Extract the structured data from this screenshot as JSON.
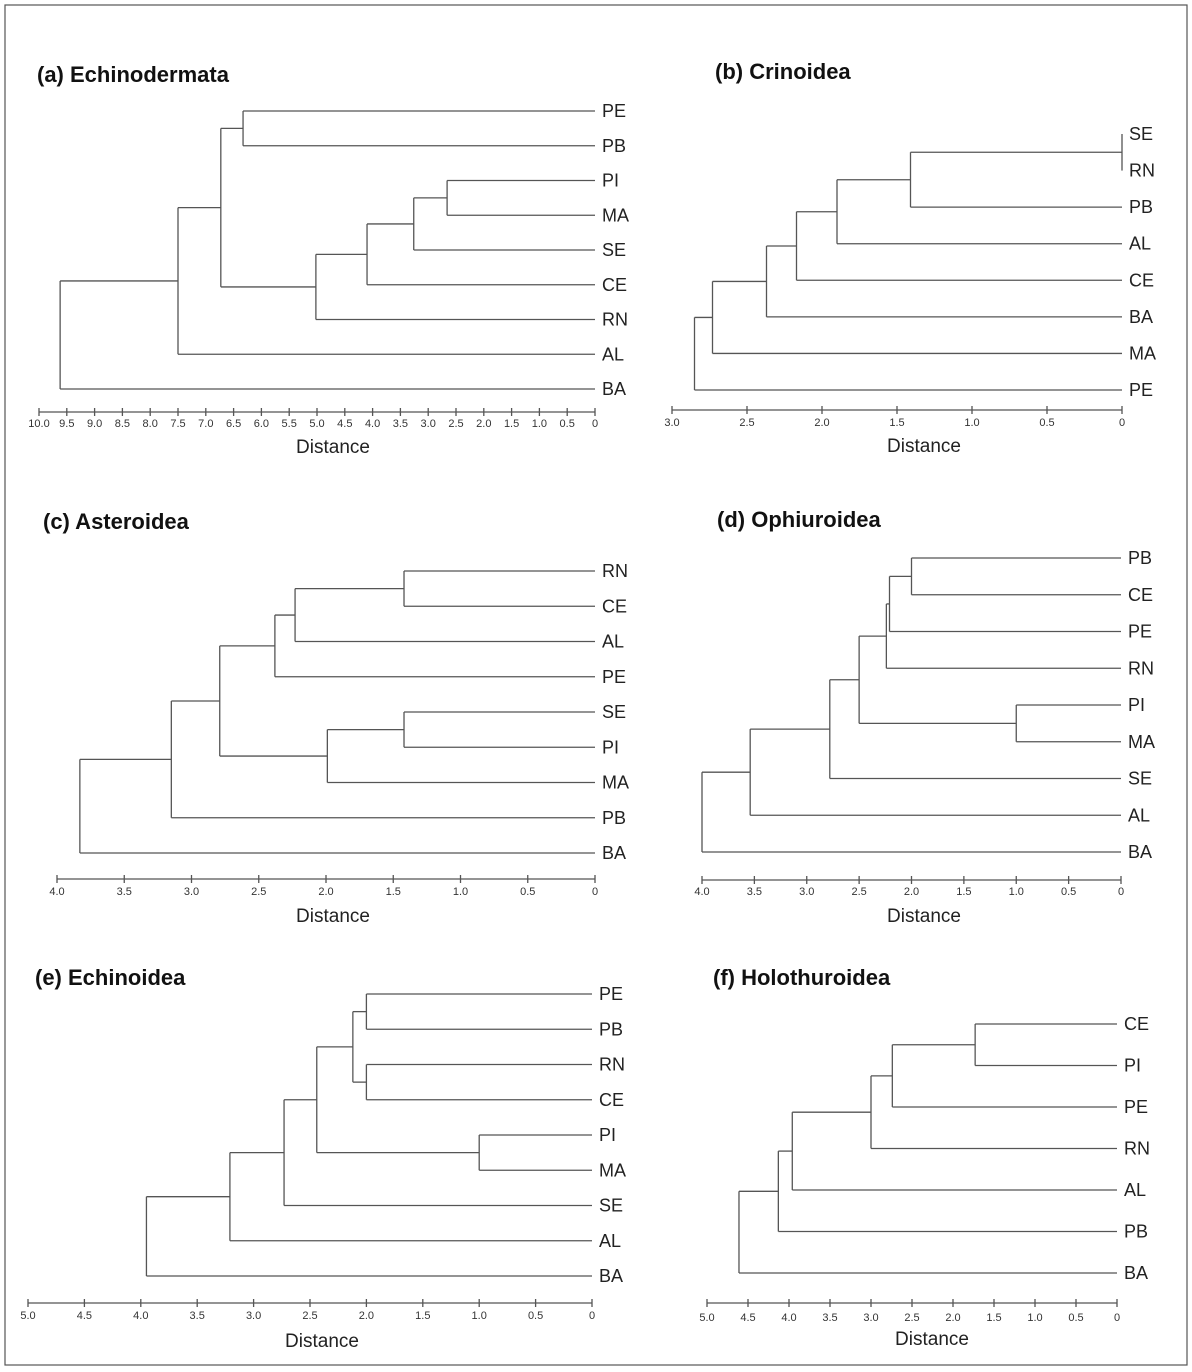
{
  "chart_data": [
    {
      "type": "dendrogram",
      "title": "(a) Echinodermata",
      "xlabel": "Distance",
      "xlim": [
        10.0,
        0
      ],
      "ticks": [
        "10.0",
        "9.5",
        "9.0",
        "8.5",
        "8.0",
        "7.5",
        "7.0",
        "6.5",
        "6.0",
        "5.5",
        "5.0",
        "4.5",
        "4.0",
        "3.5",
        "3.0",
        "2.5",
        "2.0",
        "1.5",
        "1.0",
        "0.5",
        "0"
      ],
      "leaves": [
        "PE",
        "PB",
        "PI",
        "MA",
        "SE",
        "CE",
        "RN",
        "AL",
        "BA"
      ],
      "tree": {
        "h": 9.62,
        "c": [
          {
            "h": 7.5,
            "c": [
              {
                "h": 6.73,
                "c": [
                  {
                    "h": 6.33,
                    "c": [
                      "PE",
                      "PB"
                    ]
                  },
                  {
                    "h": 5.02,
                    "c": [
                      {
                        "h": 4.1,
                        "c": [
                          {
                            "h": 3.26,
                            "c": [
                              {
                                "h": 2.66,
                                "c": [
                                  "PI",
                                  "MA"
                                ]
                              },
                              "SE"
                            ]
                          },
                          "CE"
                        ]
                      },
                      "RN"
                    ]
                  }
                ]
              },
              "AL"
            ]
          },
          "BA"
        ]
      }
    },
    {
      "type": "dendrogram",
      "title": "(b) Crinoidea",
      "xlabel": "Distance",
      "xlim": [
        3.0,
        0
      ],
      "ticks": [
        "3.0",
        "2.5",
        "2.0",
        "1.5",
        "1.0",
        "0.5",
        "0"
      ],
      "leaves": [
        "SE",
        "RN",
        "PB",
        "AL",
        "CE",
        "BA",
        "MA",
        "PE"
      ],
      "tree": {
        "h": 2.85,
        "c": [
          {
            "h": 2.73,
            "c": [
              {
                "h": 2.37,
                "c": [
                  {
                    "h": 2.17,
                    "c": [
                      {
                        "h": 1.9,
                        "c": [
                          {
                            "h": 1.41,
                            "c": [
                              {
                                "h": 0,
                                "c": [
                                  "SE",
                                  "RN"
                                ]
                              },
                              "PB"
                            ]
                          },
                          "AL"
                        ]
                      },
                      "CE"
                    ]
                  },
                  "BA"
                ]
              },
              "MA"
            ]
          },
          "PE"
        ]
      }
    },
    {
      "type": "dendrogram",
      "title": "(c) Asteroidea",
      "xlabel": "Distance",
      "xlim": [
        4.0,
        0
      ],
      "ticks": [
        "4.0",
        "3.5",
        "3.0",
        "2.5",
        "2.0",
        "1.5",
        "1.0",
        "0.5",
        "0"
      ],
      "leaves": [
        "RN",
        "CE",
        "AL",
        "PE",
        "SE",
        "PI",
        "MA",
        "PB",
        "BA"
      ],
      "tree": {
        "h": 3.83,
        "c": [
          {
            "h": 3.15,
            "c": [
              {
                "h": 2.79,
                "c": [
                  {
                    "h": 2.38,
                    "c": [
                      {
                        "h": 2.23,
                        "c": [
                          {
                            "h": 1.42,
                            "c": [
                              "RN",
                              "CE"
                            ]
                          },
                          "AL"
                        ]
                      },
                      "PE"
                    ]
                  },
                  {
                    "h": 1.99,
                    "c": [
                      {
                        "h": 1.42,
                        "c": [
                          "SE",
                          "PI"
                        ]
                      },
                      "MA"
                    ]
                  }
                ]
              },
              "PB"
            ]
          },
          "BA"
        ]
      }
    },
    {
      "type": "dendrogram",
      "title": "(d) Ophiuroidea",
      "xlabel": "Distance",
      "xlim": [
        4.0,
        0
      ],
      "ticks": [
        "4.0",
        "3.5",
        "3.0",
        "2.5",
        "2.0",
        "1.5",
        "1.0",
        "0.5",
        "0"
      ],
      "leaves": [
        "PB",
        "CE",
        "PE",
        "RN",
        "PI",
        "MA",
        "SE",
        "AL",
        "BA"
      ],
      "tree": {
        "h": 4.0,
        "c": [
          {
            "h": 3.54,
            "c": [
              {
                "h": 2.78,
                "c": [
                  {
                    "h": 2.5,
                    "c": [
                      {
                        "h": 2.24,
                        "c": [
                          {
                            "h": 2.21,
                            "c": [
                              {
                                "h": 2.0,
                                "c": [
                                  "PB",
                                  "CE"
                                ]
                              },
                              "PE"
                            ]
                          },
                          "RN"
                        ]
                      },
                      {
                        "h": 1.0,
                        "c": [
                          "PI",
                          "MA"
                        ]
                      }
                    ]
                  },
                  "SE"
                ]
              },
              "AL"
            ]
          },
          "BA"
        ]
      }
    },
    {
      "type": "dendrogram",
      "title": "(e) Echinoidea",
      "xlabel": "Distance",
      "xlim": [
        5.0,
        0
      ],
      "ticks": [
        "5.0",
        "4.5",
        "4.0",
        "3.5",
        "3.0",
        "2.5",
        "2.0",
        "1.5",
        "1.0",
        "0.5",
        "0"
      ],
      "leaves": [
        "PE",
        "PB",
        "RN",
        "CE",
        "PI",
        "MA",
        "SE",
        "AL",
        "BA"
      ],
      "tree": {
        "h": 3.95,
        "c": [
          {
            "h": 3.21,
            "c": [
              {
                "h": 2.73,
                "c": [
                  {
                    "h": 2.44,
                    "c": [
                      {
                        "h": 2.12,
                        "c": [
                          {
                            "h": 2.0,
                            "c": [
                              "PE",
                              "PB"
                            ]
                          },
                          {
                            "h": 2.0,
                            "c": [
                              "RN",
                              "CE"
                            ]
                          }
                        ]
                      },
                      {
                        "h": 1.0,
                        "c": [
                          "PI",
                          "MA"
                        ]
                      }
                    ]
                  },
                  "SE"
                ]
              },
              "AL"
            ]
          },
          "BA"
        ]
      }
    },
    {
      "type": "dendrogram",
      "title": "(f) Holothuroidea",
      "xlabel": "Distance",
      "xlim": [
        5.0,
        0
      ],
      "ticks": [
        "5.0",
        "4.5",
        "4.0",
        "3.5",
        "3.0",
        "2.5",
        "2.0",
        "1.5",
        "1.0",
        "0.5",
        "0"
      ],
      "leaves": [
        "CE",
        "PI",
        "PE",
        "RN",
        "AL",
        "PB",
        "BA"
      ],
      "tree": {
        "h": 4.61,
        "c": [
          {
            "h": 4.13,
            "c": [
              {
                "h": 3.96,
                "c": [
                  {
                    "h": 3.0,
                    "c": [
                      {
                        "h": 2.74,
                        "c": [
                          {
                            "h": 1.73,
                            "c": [
                              "CE",
                              "PI"
                            ]
                          },
                          "PE"
                        ]
                      },
                      "RN"
                    ]
                  },
                  "AL"
                ]
              },
              "PB"
            ]
          },
          "BA"
        ]
      }
    }
  ]
}
